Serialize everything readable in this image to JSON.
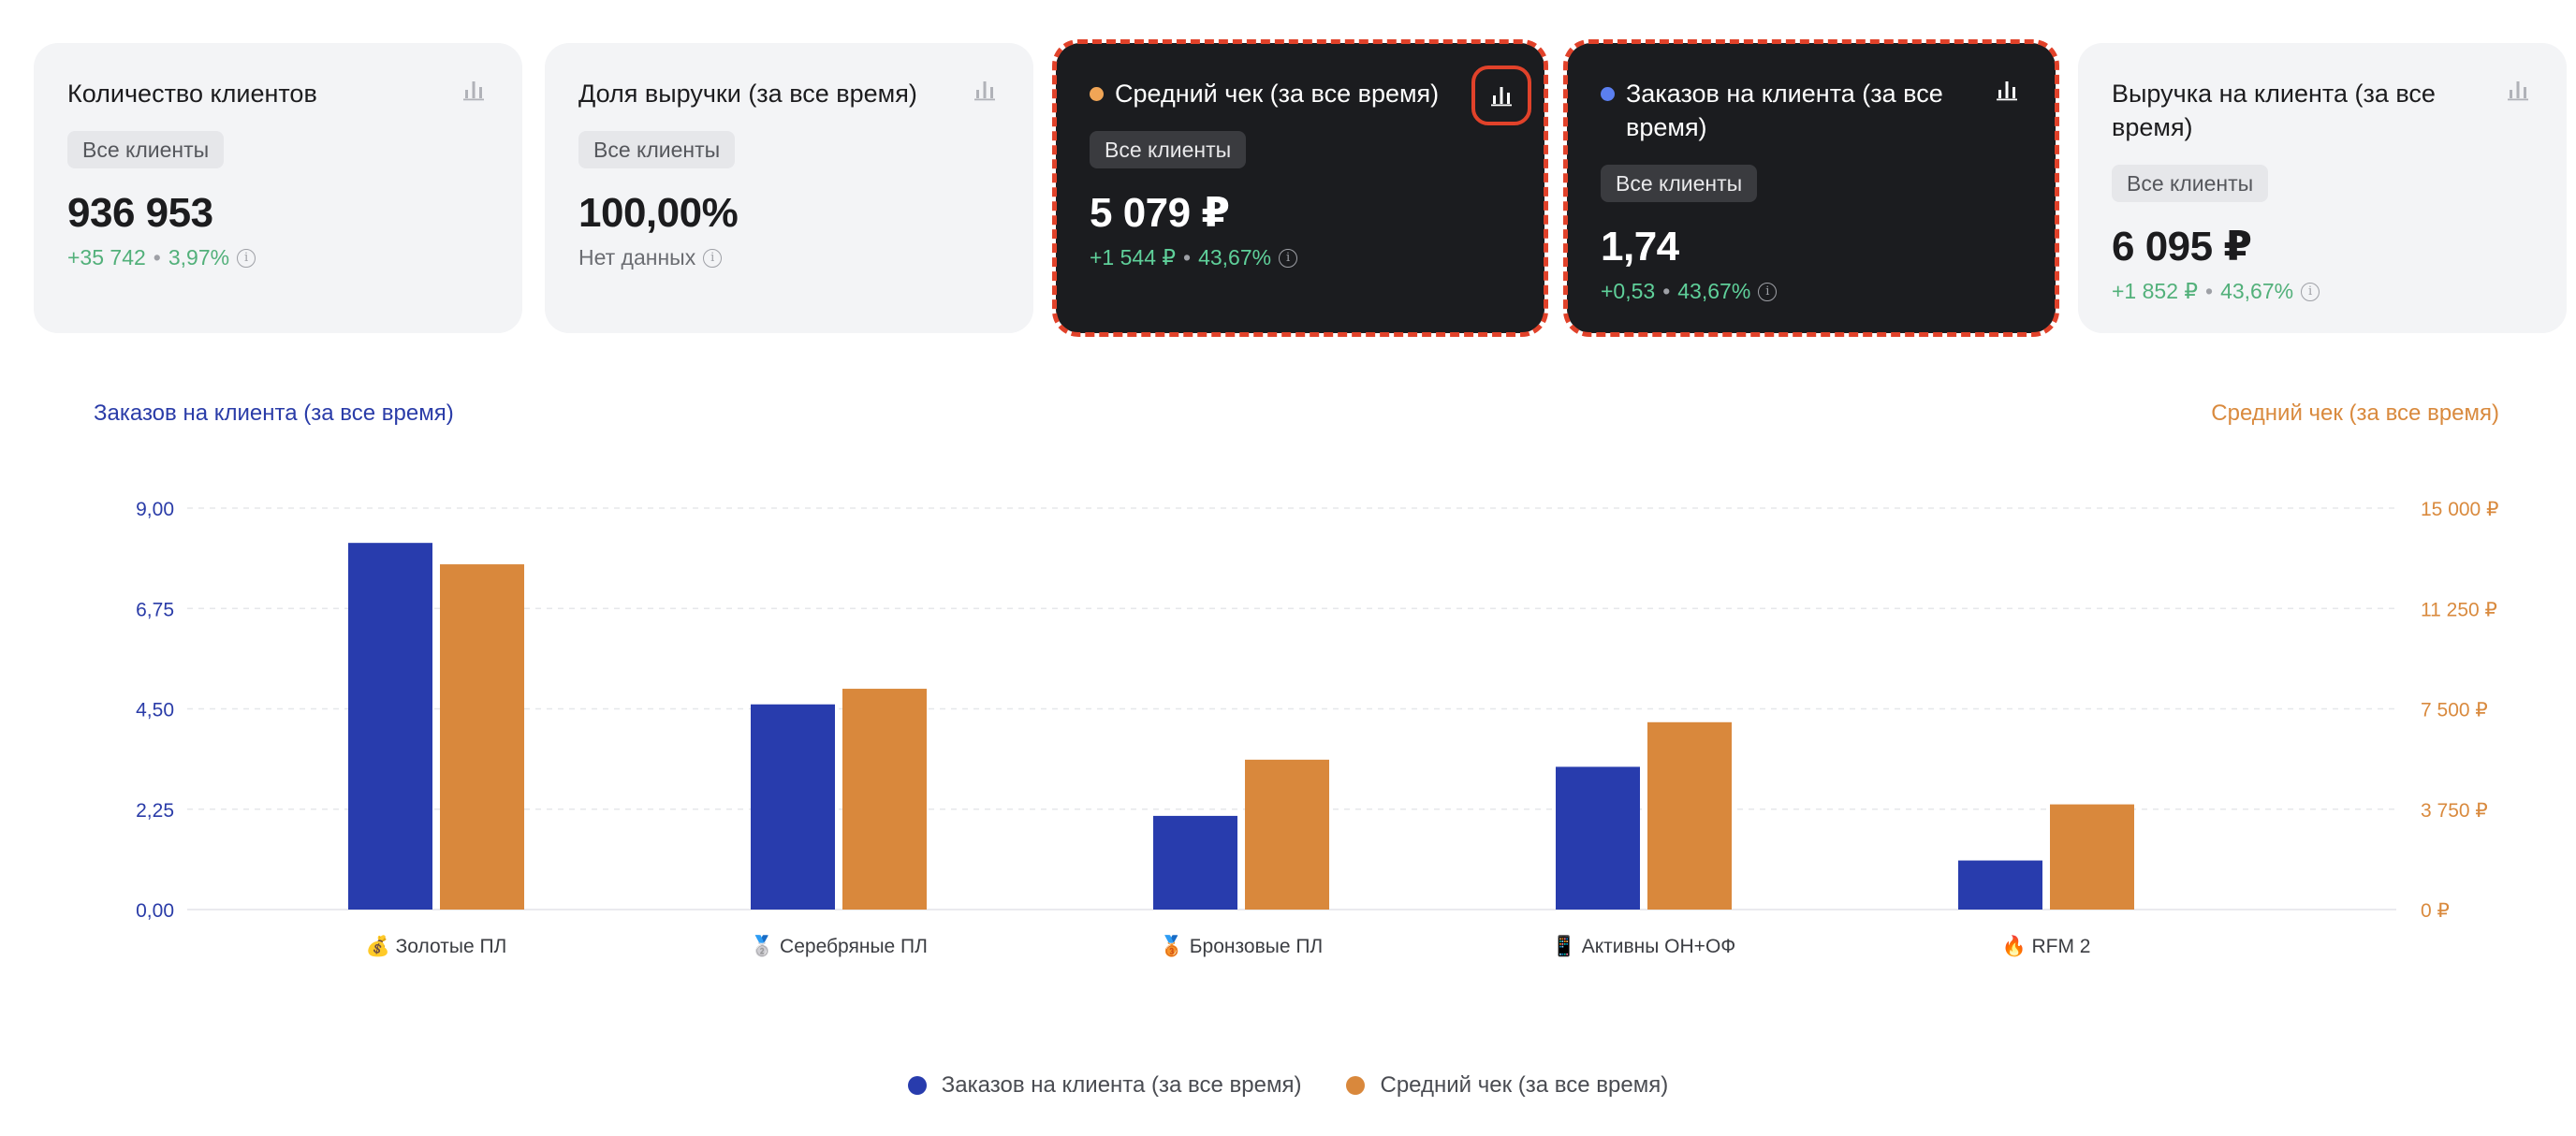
{
  "colors": {
    "series_blue": "#283cad",
    "series_orange": "#d9883c",
    "accent_positive": "#52b07a",
    "selection_border": "#e1422a"
  },
  "cards": [
    {
      "title": "Количество клиентов",
      "badge": "Все клиенты",
      "value": "936 953",
      "delta": "+35 742",
      "delta_pct": "3,97%",
      "dark": false,
      "dot": null
    },
    {
      "title": "Доля выручки (за все время)",
      "badge": "Все клиенты",
      "value": "100,00%",
      "delta": "Нет данных",
      "delta_pct": "",
      "dark": false,
      "dot": null
    },
    {
      "title": "Средний чек (за все время)",
      "badge": "Все клиенты",
      "value": "5 079 ₽",
      "delta": "+1 544 ₽",
      "delta_pct": "43,67%",
      "dark": true,
      "dot": "#f0a556",
      "active": true
    },
    {
      "title": "Заказов на клиента (за все время)",
      "badge": "Все клиенты",
      "value": "1,74",
      "delta": "+0,53",
      "delta_pct": "43,67%",
      "dark": true,
      "dot": "#5b7ff0"
    },
    {
      "title": "Выручка на клиента (за все время)",
      "badge": "Все клиенты",
      "value": "6 095 ₽",
      "delta": "+1 852 ₽",
      "delta_pct": "43,67%",
      "dark": false,
      "dot": null
    }
  ],
  "chart_data": {
    "type": "bar",
    "categories": [
      "💰 Золотые ПЛ",
      "🥈 Серебряные ПЛ",
      "🥉 Бронзовые ПЛ",
      "📱 Активны ОН+ОФ",
      "🔥 RFM 2"
    ],
    "series": [
      {
        "name": "Заказов на клиента (за все время)",
        "axis": "left",
        "color": "#283cad",
        "values": [
          8.22,
          4.6,
          2.1,
          3.2,
          1.1
        ]
      },
      {
        "name": "Средний чек (за все время)",
        "axis": "right",
        "color": "#d9883c",
        "values": [
          12900,
          8250,
          5600,
          7000,
          3930
        ]
      }
    ],
    "ylabel_left": "Заказов на клиента (за все время)",
    "ylabel_right": "Средний чек (за все время)",
    "ylim_left": [
      0,
      9
    ],
    "ylim_right": [
      0,
      15000
    ],
    "yticks_left": [
      "0,00",
      "2,25",
      "4,50",
      "6,75",
      "9,00"
    ],
    "yticks_right": [
      "0 ₽",
      "3 750 ₽",
      "7 500 ₽",
      "11 250 ₽",
      "15 000 ₽"
    ],
    "grid": true,
    "legend": "bottom"
  }
}
